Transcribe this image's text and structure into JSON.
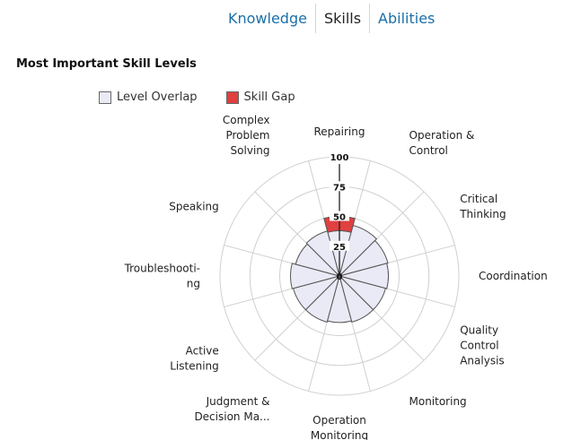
{
  "tabs": [
    {
      "label": "Knowledge",
      "active": false
    },
    {
      "label": "Skills",
      "active": true
    },
    {
      "label": "Abilities",
      "active": false
    }
  ],
  "section_title": "Most Important Skill Levels",
  "legend": {
    "overlap_label": "Level Overlap",
    "gap_label": "Skill Gap"
  },
  "colors": {
    "tab_link": "#1a6fa8",
    "overlap_fill": "#eaeaf6",
    "gap_fill": "#e04040",
    "grid": "#d0d0d0",
    "wedge_stroke": "#555555"
  },
  "chart_data": {
    "type": "radar",
    "title": "",
    "rmax": 100,
    "ticks": [
      0,
      25,
      50,
      75,
      100
    ],
    "categories": [
      "Repairing",
      "Operation & Control",
      "Critical Thinking",
      "Coordination",
      "Quality Control Analysis",
      "Monitoring",
      "Operation Monitoring",
      "Judgment & Decision Ma...",
      "Active Listening",
      "Troubleshooting",
      "Speaking",
      "Complex Problem Solving"
    ],
    "category_label_lines": [
      [
        "Repairing"
      ],
      [
        "Operation  &",
        "Control"
      ],
      [
        "Critical",
        "Thinking"
      ],
      [
        "Coordination"
      ],
      [
        "Quality",
        "Control",
        "Analysis"
      ],
      [
        "Monitoring"
      ],
      [
        "Operation",
        "Monitoring"
      ],
      [
        "Judgment  &",
        "Decision Ma..."
      ],
      [
        "Active",
        "Listening"
      ],
      [
        "Troubleshooti-",
        "ng"
      ],
      [
        "Speaking"
      ],
      [
        "Complex",
        "Problem",
        "Solving"
      ]
    ],
    "series": [
      {
        "name": "Level Overlap",
        "values": [
          38,
          44,
          42,
          41,
          40,
          40,
          39,
          40,
          40,
          41,
          38,
          39
        ]
      },
      {
        "name": "Skill Gap",
        "values": [
          50,
          0,
          0,
          0,
          0,
          0,
          0,
          0,
          0,
          0,
          0,
          0
        ]
      }
    ]
  }
}
